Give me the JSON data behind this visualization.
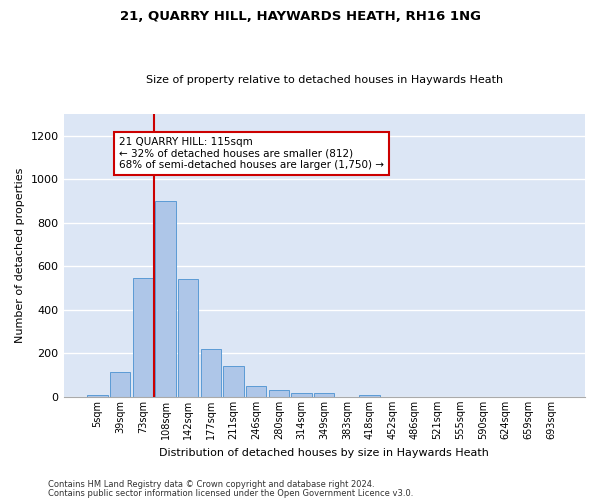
{
  "title": "21, QUARRY HILL, HAYWARDS HEATH, RH16 1NG",
  "subtitle": "Size of property relative to detached houses in Haywards Heath",
  "xlabel": "Distribution of detached houses by size in Haywards Heath",
  "ylabel": "Number of detached properties",
  "bar_color": "#aec6e8",
  "bar_edge_color": "#5b9bd5",
  "background_color": "#dce6f5",
  "grid_color": "#ffffff",
  "categories": [
    "5sqm",
    "39sqm",
    "73sqm",
    "108sqm",
    "142sqm",
    "177sqm",
    "211sqm",
    "246sqm",
    "280sqm",
    "314sqm",
    "349sqm",
    "383sqm",
    "418sqm",
    "452sqm",
    "486sqm",
    "521sqm",
    "555sqm",
    "590sqm",
    "624sqm",
    "659sqm",
    "693sqm"
  ],
  "values": [
    8,
    115,
    545,
    900,
    540,
    220,
    140,
    50,
    33,
    20,
    18,
    0,
    8,
    0,
    0,
    0,
    0,
    0,
    0,
    0,
    0
  ],
  "ylim": [
    0,
    1300
  ],
  "yticks": [
    0,
    200,
    400,
    600,
    800,
    1000,
    1200
  ],
  "property_line_x": 2.5,
  "annotation_text": "21 QUARRY HILL: 115sqm\n← 32% of detached houses are smaller (812)\n68% of semi-detached houses are larger (1,750) →",
  "annotation_box_color": "#ffffff",
  "annotation_box_edge": "#cc0000",
  "vline_color": "#cc0000",
  "footer_line1": "Contains HM Land Registry data © Crown copyright and database right 2024.",
  "footer_line2": "Contains public sector information licensed under the Open Government Licence v3.0."
}
